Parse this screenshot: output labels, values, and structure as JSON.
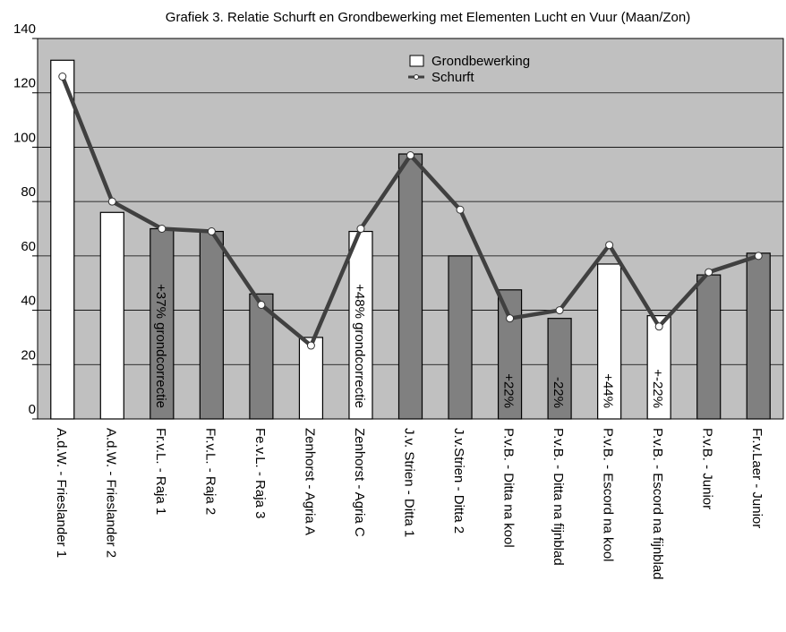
{
  "chart_data": {
    "type": "bar",
    "title": "Grafiek 3. Relatie Schurft en Grondbewerking met Elementen Lucht en Vuur (Maan/Zon)",
    "categories": [
      "A.d.W. - Frieslander 1",
      "A.d.W. - Frieslander 2",
      "Fr.v.L. - Raja 1",
      "Fr.v.L. - Raja 2",
      "Fe.v.L. - Raja 3",
      "Zenhorst - Agria A",
      "Zenhorst - Agria C",
      "J.v. Strien - Ditta 1",
      "J.v.Strien - Ditta 2",
      "P.v.B. - Ditta na kool",
      "P.v.B. - Ditta na fijnblad",
      "P.v.B. - Escord na kool",
      "P.v.B. - Escord na fijnblad",
      "P.v.B. - Junior",
      "Fr.v.Laer  - Junior"
    ],
    "series": [
      {
        "name": "Grondbewerking",
        "type": "bar",
        "color": "#ffffff",
        "colors": [
          "#ffffff",
          "#ffffff",
          "#808080",
          "#808080",
          "#808080",
          "#ffffff",
          "#ffffff",
          "#808080",
          "#808080",
          "#808080",
          "#808080",
          "#ffffff",
          "#ffffff",
          "#808080",
          "#808080"
        ],
        "values": [
          132,
          76,
          70,
          69,
          46,
          30,
          69,
          97.5,
          60,
          47.5,
          37,
          57,
          38,
          53,
          61
        ]
      },
      {
        "name": "Schurft",
        "type": "line",
        "color": "#404040",
        "values": [
          126,
          80,
          70,
          69,
          42,
          27,
          70,
          97,
          77,
          37,
          40,
          64,
          34,
          54,
          60
        ]
      }
    ],
    "annotations": [
      null,
      null,
      "+37% grondcorrectie",
      null,
      null,
      null,
      "+48% grondcorrectie",
      null,
      null,
      "+22%",
      "-22%",
      "+44%",
      "+-22%",
      null,
      null
    ],
    "ylim": [
      0,
      140
    ],
    "yticks": [
      0,
      20,
      40,
      60,
      80,
      100,
      120,
      140
    ],
    "grid": true,
    "legend": "top"
  }
}
